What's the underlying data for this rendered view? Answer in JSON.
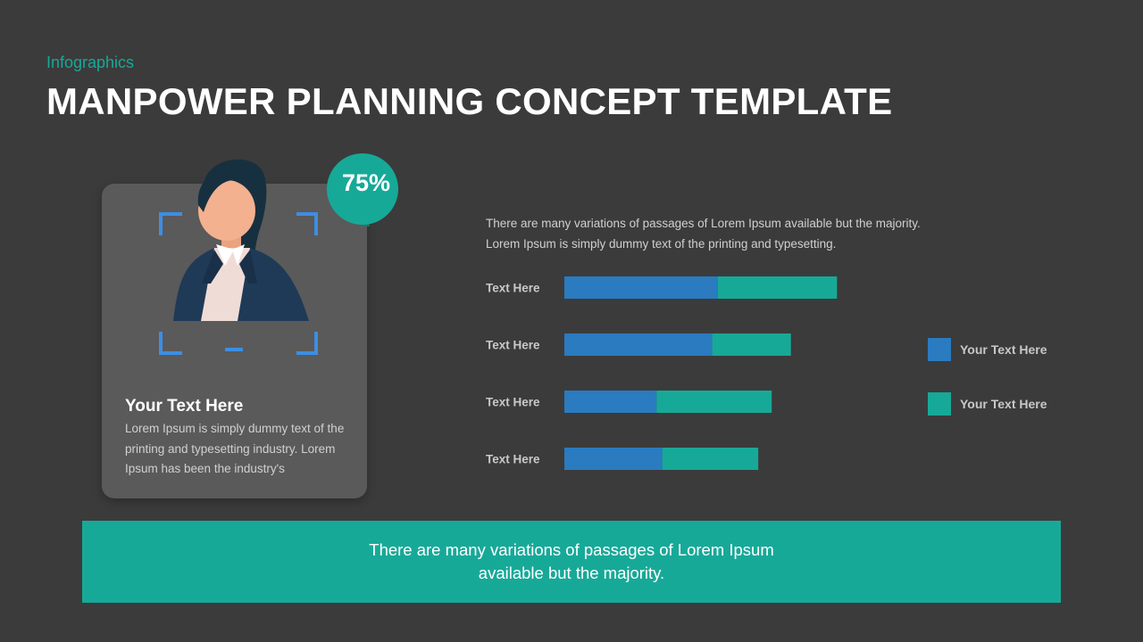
{
  "header": {
    "eyebrow": "Infographics",
    "title": "MANPOWER PLANNING CONCEPT TEMPLATE"
  },
  "profile_card": {
    "badge": "75%",
    "heading": "Your Text Here",
    "body": "Lorem Ipsum is simply dummy text of the printing and typesetting industry. Lorem Ipsum has been the industry's"
  },
  "intro_text": "There are many variations of passages of Lorem Ipsum available but the majority. Lorem Ipsum is simply dummy text of the printing and typesetting.",
  "colors": {
    "background": "#3b3b3b",
    "accent": "#17a998",
    "series1": "#2a7bbf",
    "series2": "#17a998"
  },
  "chart_data": {
    "type": "bar",
    "orientation": "horizontal",
    "stacked": true,
    "categories": [
      "Text Here",
      "Text Here",
      "Text Here",
      "Text Here"
    ],
    "series": [
      {
        "name": "Your Text Here",
        "values": [
          40,
          38.5,
          24,
          25.5
        ],
        "color": "#2a7bbf"
      },
      {
        "name": "Your Text Here",
        "values": [
          31,
          20.5,
          30,
          25
        ],
        "color": "#17a998"
      }
    ],
    "xlim": [
      0,
      100
    ],
    "grid": false,
    "legend": "right"
  },
  "footer": {
    "text": "There are many variations of passages of Lorem Ipsum available but the majority."
  }
}
